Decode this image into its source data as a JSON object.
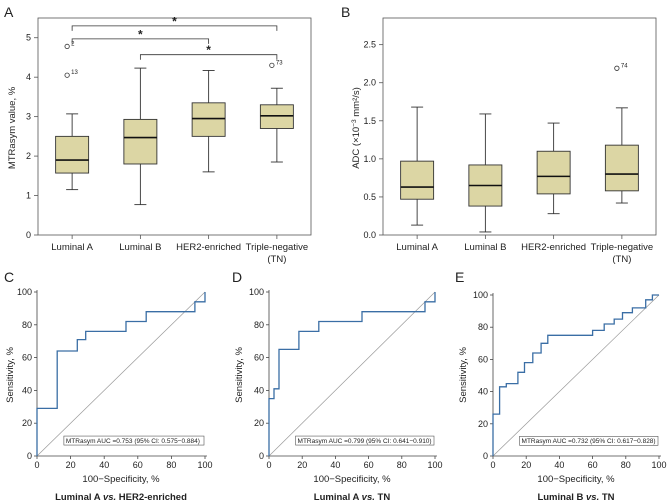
{
  "colors": {
    "box_fill": "#dcd6a4",
    "box_stroke": "#333333",
    "roc_line": "#3a6ea5",
    "diag_line": "#9a9a9a"
  },
  "chart_data": [
    {
      "panel": "A",
      "type": "boxplot",
      "ylabel": "MTRasym value, %",
      "ylim": [
        0,
        5.5
      ],
      "yticks": [
        0,
        1,
        2,
        3,
        4,
        5
      ],
      "categories": [
        "Luminal A",
        "Luminal B",
        "HER2-enriched",
        "Triple-negative"
      ],
      "category_sublabels": [
        "",
        "",
        "",
        "(TN)"
      ],
      "boxes": [
        {
          "whisker_low": 1.15,
          "q1": 1.57,
          "median": 1.9,
          "q3": 2.5,
          "whisker_high": 3.07
        },
        {
          "whisker_low": 0.77,
          "q1": 1.8,
          "median": 2.47,
          "q3": 2.93,
          "whisker_high": 4.23
        },
        {
          "whisker_low": 1.6,
          "q1": 2.5,
          "median": 2.95,
          "q3": 3.35,
          "whisker_high": 4.17
        },
        {
          "whisker_low": 1.85,
          "q1": 2.7,
          "median": 3.02,
          "q3": 3.3,
          "whisker_high": 3.72
        }
      ],
      "outliers": [
        {
          "category": 0,
          "value": 4.78,
          "label": "2"
        },
        {
          "category": 0,
          "value": 4.05,
          "label": "13"
        },
        {
          "category": 3,
          "value": 4.3,
          "label": "73"
        }
      ],
      "significance": [
        {
          "from": 0,
          "to": 3,
          "value": 5.3,
          "label": "*"
        },
        {
          "from": 0,
          "to": 2,
          "value": 4.97,
          "label": "*"
        },
        {
          "from": 1,
          "to": 3,
          "value": 4.57,
          "label": "*"
        }
      ]
    },
    {
      "panel": "B",
      "type": "boxplot",
      "ylabel_main": "ADC (×10",
      "ylabel_sup": "−3",
      "ylabel_end": " mm²/s)",
      "ylim": [
        0,
        2.85
      ],
      "yticks": [
        "0.0",
        "0.5",
        "1.0",
        "1.5",
        "2.0",
        "2.5"
      ],
      "categories": [
        "Luminal A",
        "Luminal B",
        "HER2-enriched",
        "Triple-negative"
      ],
      "category_sublabels": [
        "",
        "",
        "",
        "(TN)"
      ],
      "boxes": [
        {
          "whisker_low": 0.13,
          "q1": 0.47,
          "median": 0.63,
          "q3": 0.97,
          "whisker_high": 1.68
        },
        {
          "whisker_low": 0.04,
          "q1": 0.38,
          "median": 0.65,
          "q3": 0.92,
          "whisker_high": 1.59
        },
        {
          "whisker_low": 0.28,
          "q1": 0.54,
          "median": 0.77,
          "q3": 1.1,
          "whisker_high": 1.47
        },
        {
          "whisker_low": 0.42,
          "q1": 0.58,
          "median": 0.8,
          "q3": 1.18,
          "whisker_high": 1.67
        }
      ],
      "outliers": [
        {
          "category": 3,
          "value": 2.19,
          "label": "74"
        }
      ]
    },
    {
      "panel": "C",
      "type": "line",
      "xlabel": "100−Specificity, %",
      "ylabel": "Sensitivity, %",
      "xlim": [
        0,
        100
      ],
      "ylim": [
        0,
        100
      ],
      "ticks": [
        0,
        20,
        40,
        60,
        80,
        100
      ],
      "legend": "MTRasym AUC =0.753 (95% CI: 0.575−0.884)",
      "caption_a": "Luminal A ",
      "caption_vs": "vs.",
      "caption_b": " HER2-enriched",
      "roc": [
        [
          0,
          0
        ],
        [
          0,
          29
        ],
        [
          12,
          29
        ],
        [
          12,
          64
        ],
        [
          24,
          64
        ],
        [
          24,
          71
        ],
        [
          29,
          71
        ],
        [
          29,
          76
        ],
        [
          41,
          76
        ],
        [
          41,
          76
        ],
        [
          53,
          76
        ],
        [
          53,
          82
        ],
        [
          65,
          82
        ],
        [
          65,
          88
        ],
        [
          94,
          88
        ],
        [
          94,
          94
        ],
        [
          100,
          94
        ],
        [
          100,
          100
        ]
      ]
    },
    {
      "panel": "D",
      "type": "line",
      "xlabel": "100−Specificity, %",
      "ylabel": "Sensitivity, %",
      "xlim": [
        0,
        100
      ],
      "ylim": [
        0,
        100
      ],
      "ticks": [
        0,
        20,
        40,
        60,
        80,
        100
      ],
      "legend": "MTRasym AUC =0.799 (95% CI: 0.641−0.910)",
      "caption_a": "Luminal A ",
      "caption_vs": "vs.",
      "caption_b": " TN",
      "roc": [
        [
          0,
          0
        ],
        [
          0,
          35
        ],
        [
          3,
          35
        ],
        [
          3,
          41
        ],
        [
          6,
          41
        ],
        [
          6,
          65
        ],
        [
          18,
          65
        ],
        [
          18,
          76
        ],
        [
          30,
          76
        ],
        [
          30,
          82
        ],
        [
          53,
          82
        ],
        [
          53,
          82
        ],
        [
          56,
          82
        ],
        [
          56,
          88
        ],
        [
          94,
          88
        ],
        [
          94,
          94
        ],
        [
          100,
          94
        ],
        [
          100,
          100
        ]
      ]
    },
    {
      "panel": "E",
      "type": "line",
      "xlabel": "100−Specificity, %",
      "ylabel": "Sensitivity, %",
      "xlim": [
        0,
        100
      ],
      "ylim": [
        0,
        100
      ],
      "ticks": [
        0,
        20,
        40,
        60,
        80,
        100
      ],
      "legend": "MTRasym AUC =0.732 (95% CI: 0.617−0.828)",
      "caption_a": "Luminal B ",
      "caption_vs": "vs.",
      "caption_b": " TN",
      "roc": [
        [
          0,
          0
        ],
        [
          0,
          26
        ],
        [
          4,
          26
        ],
        [
          4,
          43
        ],
        [
          8,
          43
        ],
        [
          8,
          45
        ],
        [
          15,
          45
        ],
        [
          15,
          52
        ],
        [
          19,
          52
        ],
        [
          19,
          58
        ],
        [
          24,
          58
        ],
        [
          24,
          64
        ],
        [
          29,
          64
        ],
        [
          29,
          70
        ],
        [
          33,
          70
        ],
        [
          33,
          75
        ],
        [
          60,
          75
        ],
        [
          60,
          78
        ],
        [
          67,
          78
        ],
        [
          67,
          82
        ],
        [
          73,
          82
        ],
        [
          73,
          85
        ],
        [
          78,
          85
        ],
        [
          78,
          89
        ],
        [
          84,
          89
        ],
        [
          84,
          92
        ],
        [
          92,
          92
        ],
        [
          92,
          97
        ],
        [
          96,
          97
        ],
        [
          96,
          100
        ],
        [
          100,
          100
        ]
      ]
    }
  ]
}
